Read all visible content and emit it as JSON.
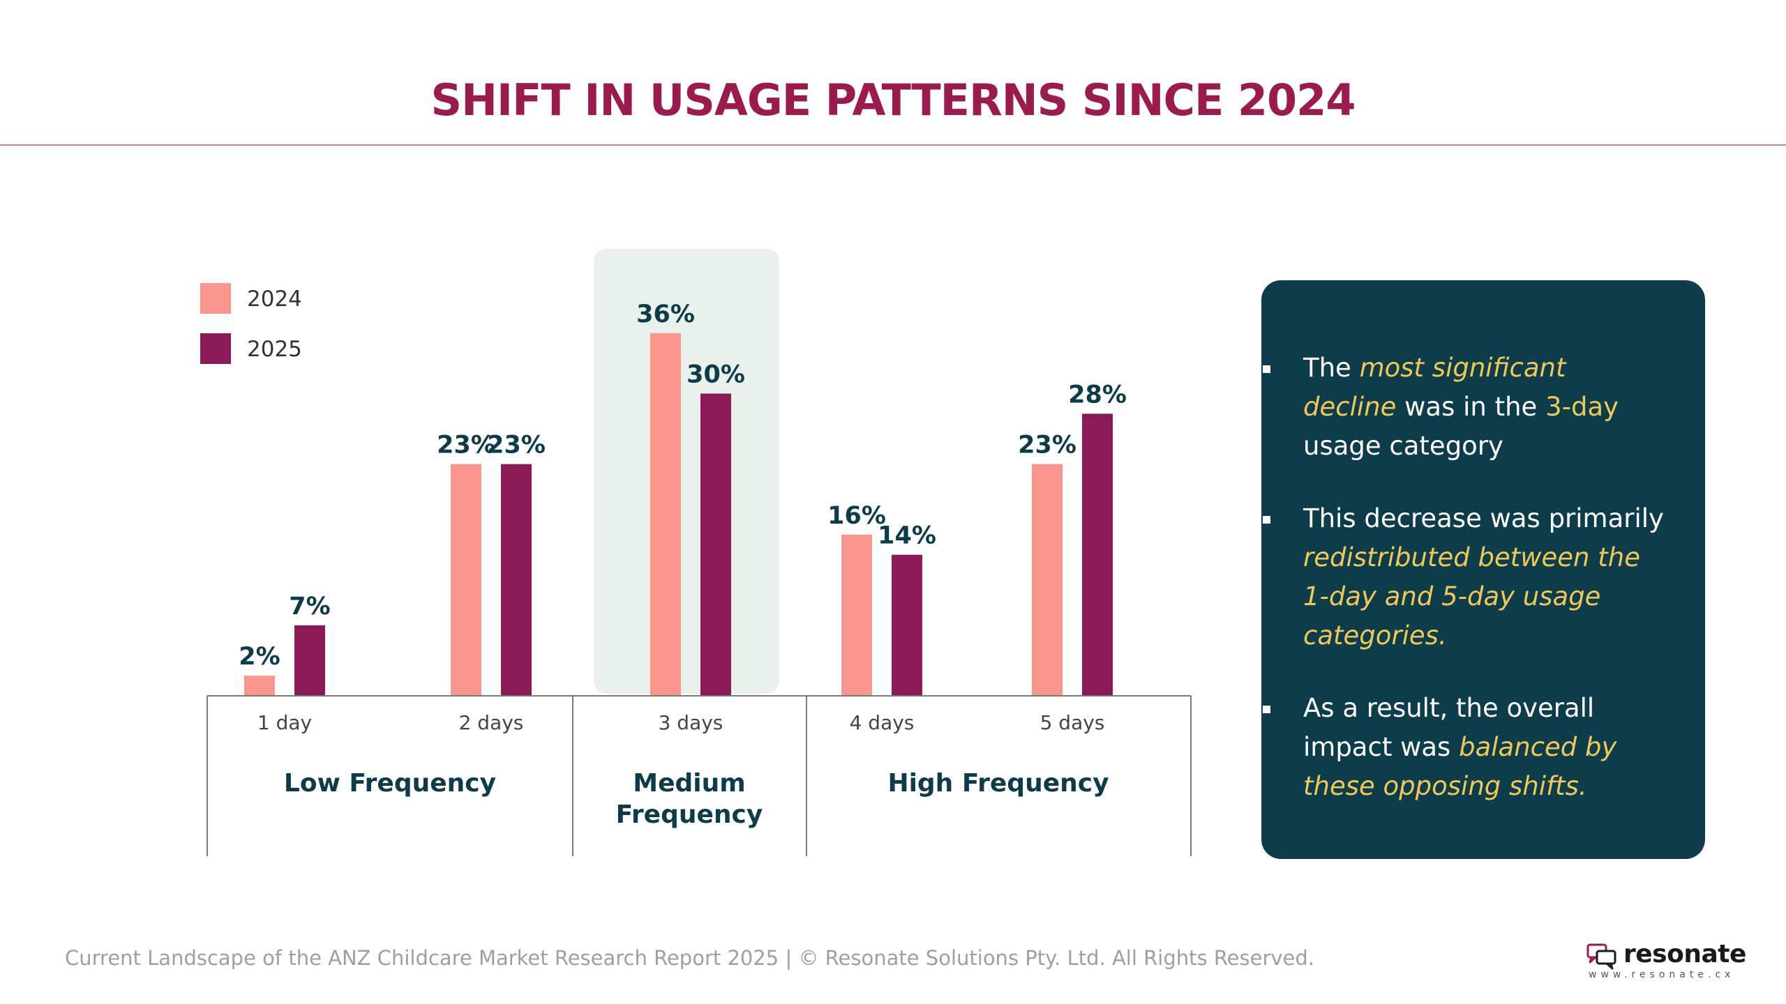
{
  "title": "SHIFT IN USAGE PATTERNS SINCE 2024",
  "colors": {
    "accent": "#9a1b4e",
    "series_2024": "#f8958d",
    "series_2025": "#8a1a55",
    "highlight_band": "#eaf1ec",
    "panel_bg": "#0d3d4b",
    "value_text": "#0d3b4a",
    "highlight_text": "#f0c85a"
  },
  "chart_data": {
    "type": "bar",
    "categories": [
      "1 day",
      "2 days",
      "3 days",
      "4 days",
      "5 days"
    ],
    "series": [
      {
        "name": "2024",
        "values": [
          2,
          23,
          36,
          16,
          23
        ],
        "labels": [
          "2%",
          "23%",
          "36%",
          "16%",
          "23%"
        ]
      },
      {
        "name": "2025",
        "values": [
          7,
          23,
          30,
          14,
          28
        ],
        "labels": [
          "7%",
          "23%",
          "30%",
          "14%",
          "28%"
        ]
      }
    ],
    "groups": [
      {
        "label": "Low Frequency",
        "categories": [
          "1 day",
          "2 days"
        ]
      },
      {
        "label": "Medium Frequency",
        "categories": [
          "3 days"
        ]
      },
      {
        "label": "High Frequency",
        "categories": [
          "4 days",
          "5 days"
        ]
      }
    ],
    "highlighted_category": "3 days",
    "ylim": [
      0,
      40
    ],
    "legend_position": "top-left",
    "grid": false,
    "title": "",
    "xlabel": "",
    "ylabel": ""
  },
  "panel": {
    "bullets": [
      {
        "parts": [
          {
            "text": "The ",
            "style": "plain"
          },
          {
            "text": "most significant decline",
            "style": "italic-highlight"
          },
          {
            "text": " was in the ",
            "style": "plain"
          },
          {
            "text": "3-day",
            "style": "highlight"
          },
          {
            "text": " usage category",
            "style": "plain"
          }
        ]
      },
      {
        "parts": [
          {
            "text": "This decrease was primarily ",
            "style": "plain"
          },
          {
            "text": "redistributed between the 1-day and 5-day usage categories.",
            "style": "italic-highlight"
          }
        ]
      },
      {
        "parts": [
          {
            "text": "As a result, the overall impact was ",
            "style": "plain"
          },
          {
            "text": "balanced by these opposing shifts.",
            "style": "italic-highlight"
          }
        ]
      }
    ]
  },
  "footer": {
    "text": "Current Landscape of the ANZ Childcare Market Research Report 2025 | © Resonate Solutions Pty. Ltd. All Rights Reserved."
  },
  "logo": {
    "word": "resonate",
    "url": "www.resonate.cx",
    "icon": "speech-bubbles-icon"
  }
}
